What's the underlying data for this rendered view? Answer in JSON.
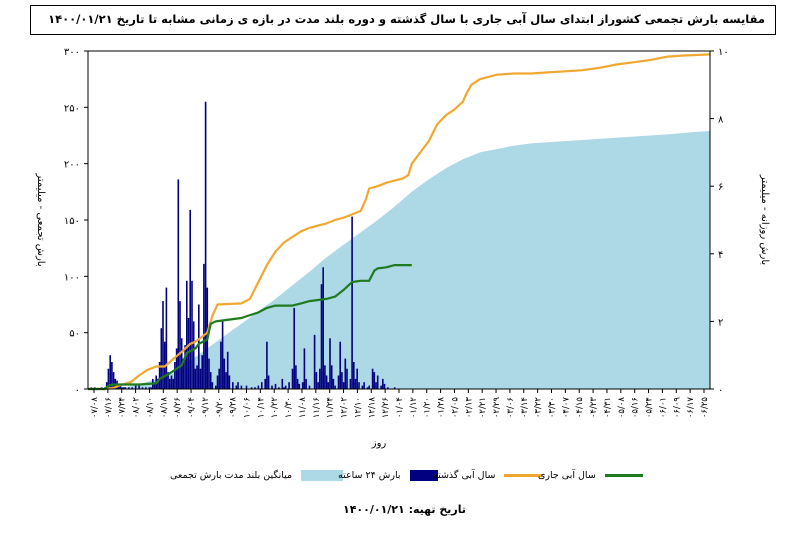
{
  "header": {
    "title": "مقایسه بارش تجمعی کشوراز ابتدای سال آبی جاری با سال گذشته و دوره بلند مدت در بازه ی زمانی مشابه تا تاریخ   ۱۴۰۰/۰۱/۲۱"
  },
  "footer": {
    "date_label": "تاریخ تهیه:",
    "date_value": "۱۴۰۰/۰۱/۲۱"
  },
  "colors": {
    "longterm": "#add8e6",
    "daily": "#000080",
    "last_year": "#f0a830",
    "current": "#1e7b1e"
  },
  "chart_data": {
    "type": "area",
    "x_unit": "day of water year",
    "xlabel": "روز",
    "ylabel_left": "بارش تجمعی - میلیمتر",
    "ylabel_right": "بارش روزانه - میلیمتر",
    "ylim_left": [
      0,
      300
    ],
    "ylim_right": [
      0,
      10
    ],
    "y_ticks_left": [
      "۰",
      "۵۰",
      "۱۰۰",
      "۱۵۰",
      "۲۰۰",
      "۲۵۰",
      "۳۰۰"
    ],
    "y_ticks_right": [
      "۰",
      "۲",
      "۴",
      "۶",
      "۸",
      "۱۰"
    ],
    "x_ticks": [
      "۰۷/۰۸",
      "۰۷/۱۶",
      "۰۷/۲۴",
      "۰۸/۰۲",
      "۰۸/۱۰",
      "۰۸/۱۸",
      "۰۸/۲۶",
      "۰۹/۰۴",
      "۰۹/۱۲",
      "۰۹/۲۰",
      "۰۹/۲۸",
      "۱۰/۰۶",
      "۱۰/۱۴",
      "۱۰/۲۲",
      "۱۰/۳۰",
      "۱۱/۰۸",
      "۱۱/۱۶",
      "۱۱/۲۴",
      "۱۲/۰۲",
      "۱۲/۱۰",
      "۱۲/۱۸",
      "۱۲/۲۶",
      "۰۱/۰۴",
      "۰۱/۱۲",
      "۰۱/۲۰",
      "۰۱/۲۸",
      "۰۲/۰۵",
      "۰۲/۱۳",
      "۰۲/۲۱",
      "۰۲/۲۹",
      "۰۳/۰۶",
      "۰۳/۱۴",
      "۰۳/۲۲",
      "۰۳/۳۰",
      "۰۴/۰۷",
      "۰۴/۱۵",
      "۰۴/۲۳",
      "۰۴/۳۱",
      "۰۵/۰۸",
      "۰۵/۱۶",
      "۰۵/۲۴",
      "۰۶/۰۱",
      "۰۶/۰۹",
      "۰۶/۱۷",
      "۰۶/۲۵"
    ],
    "x_max": 365,
    "series": [
      {
        "name": "میانگین بلند مدت بارش تجمعی",
        "kind": "area",
        "axis": "left",
        "points": [
          [
            0,
            0
          ],
          [
            20,
            1
          ],
          [
            30,
            4
          ],
          [
            40,
            9
          ],
          [
            50,
            16
          ],
          [
            60,
            25
          ],
          [
            70,
            36
          ],
          [
            80,
            47
          ],
          [
            90,
            58
          ],
          [
            100,
            69
          ],
          [
            110,
            80
          ],
          [
            120,
            92
          ],
          [
            130,
            104
          ],
          [
            140,
            117
          ],
          [
            150,
            128
          ],
          [
            160,
            139
          ],
          [
            170,
            150
          ],
          [
            180,
            162
          ],
          [
            190,
            175
          ],
          [
            200,
            186
          ],
          [
            210,
            196
          ],
          [
            220,
            204
          ],
          [
            230,
            210
          ],
          [
            240,
            213
          ],
          [
            250,
            216
          ],
          [
            260,
            218
          ],
          [
            280,
            220
          ],
          [
            300,
            222
          ],
          [
            320,
            224
          ],
          [
            340,
            226
          ],
          [
            355,
            228
          ],
          [
            365,
            229
          ]
        ]
      },
      {
        "name": "سال آبی گذشته",
        "kind": "line",
        "axis": "left",
        "points": [
          [
            0,
            0
          ],
          [
            10,
            0
          ],
          [
            15,
            1
          ],
          [
            20,
            4
          ],
          [
            25,
            6
          ],
          [
            30,
            12
          ],
          [
            35,
            17
          ],
          [
            40,
            20
          ],
          [
            45,
            20
          ],
          [
            48,
            24
          ],
          [
            55,
            33
          ],
          [
            60,
            40
          ],
          [
            63,
            42
          ],
          [
            70,
            50
          ],
          [
            73,
            65
          ],
          [
            76,
            75
          ],
          [
            90,
            76
          ],
          [
            95,
            80
          ],
          [
            97,
            86
          ],
          [
            100,
            95
          ],
          [
            105,
            110
          ],
          [
            110,
            122
          ],
          [
            115,
            130
          ],
          [
            120,
            135
          ],
          [
            125,
            140
          ],
          [
            130,
            143
          ],
          [
            135,
            145
          ],
          [
            140,
            147
          ],
          [
            145,
            150
          ],
          [
            150,
            152
          ],
          [
            155,
            155
          ],
          [
            160,
            158
          ],
          [
            163,
            168
          ],
          [
            165,
            178
          ],
          [
            170,
            180
          ],
          [
            175,
            183
          ],
          [
            180,
            185
          ],
          [
            185,
            187
          ],
          [
            188,
            190
          ],
          [
            190,
            200
          ],
          [
            195,
            210
          ],
          [
            200,
            220
          ],
          [
            205,
            235
          ],
          [
            210,
            243
          ],
          [
            215,
            248
          ],
          [
            220,
            255
          ],
          [
            222,
            262
          ],
          [
            225,
            270
          ],
          [
            230,
            275
          ],
          [
            235,
            277
          ],
          [
            240,
            279
          ],
          [
            250,
            280
          ],
          [
            260,
            280
          ],
          [
            270,
            281
          ],
          [
            280,
            282
          ],
          [
            290,
            283
          ],
          [
            300,
            285
          ],
          [
            310,
            288
          ],
          [
            320,
            290
          ],
          [
            330,
            292
          ],
          [
            340,
            295
          ],
          [
            350,
            296
          ],
          [
            365,
            297
          ]
        ]
      },
      {
        "name": "سال آبی جاری",
        "kind": "line",
        "axis": "left",
        "points": [
          [
            0,
            0
          ],
          [
            10,
            0
          ],
          [
            12,
            3
          ],
          [
            15,
            4
          ],
          [
            30,
            4
          ],
          [
            40,
            5
          ],
          [
            42,
            9
          ],
          [
            47,
            13
          ],
          [
            50,
            16
          ],
          [
            55,
            21
          ],
          [
            58,
            32
          ],
          [
            63,
            36
          ],
          [
            65,
            40
          ],
          [
            70,
            44
          ],
          [
            72,
            58
          ],
          [
            75,
            60
          ],
          [
            85,
            62
          ],
          [
            90,
            63
          ],
          [
            100,
            68
          ],
          [
            105,
            72
          ],
          [
            110,
            74
          ],
          [
            120,
            74
          ],
          [
            125,
            76
          ],
          [
            130,
            78
          ],
          [
            135,
            79
          ],
          [
            140,
            80
          ],
          [
            145,
            82
          ],
          [
            150,
            88
          ],
          [
            155,
            95
          ],
          [
            160,
            96
          ],
          [
            165,
            96
          ],
          [
            168,
            105
          ],
          [
            170,
            107
          ],
          [
            175,
            108
          ],
          [
            180,
            110
          ],
          [
            185,
            110
          ],
          [
            190,
            110
          ]
        ]
      },
      {
        "name": "بارش ۲۴ ساعته",
        "kind": "bar",
        "axis": "right",
        "points": [
          [
            2,
            0.05
          ],
          [
            4,
            0.05
          ],
          [
            8,
            0.05
          ],
          [
            10,
            0.05
          ],
          [
            11,
            0.2
          ],
          [
            12,
            0.6
          ],
          [
            13,
            1.0
          ],
          [
            14,
            0.8
          ],
          [
            15,
            0.5
          ],
          [
            16,
            0.3
          ],
          [
            17,
            0.25
          ],
          [
            18,
            0.1
          ],
          [
            19,
            0.1
          ],
          [
            20,
            0.05
          ],
          [
            21,
            0.05
          ],
          [
            22,
            0.05
          ],
          [
            24,
            0.05
          ],
          [
            26,
            0.05
          ],
          [
            28,
            0.1
          ],
          [
            30,
            0.1
          ],
          [
            32,
            0.05
          ],
          [
            34,
            0.05
          ],
          [
            36,
            0.05
          ],
          [
            37,
            0.05
          ],
          [
            38,
            0.3
          ],
          [
            39,
            0.2
          ],
          [
            40,
            0.4
          ],
          [
            41,
            0.3
          ],
          [
            42,
            0.8
          ],
          [
            43,
            1.8
          ],
          [
            44,
            2.6
          ],
          [
            45,
            1.4
          ],
          [
            46,
            3.0
          ],
          [
            47,
            0.5
          ],
          [
            48,
            0.3
          ],
          [
            49,
            0.4
          ],
          [
            50,
            0.3
          ],
          [
            51,
            0.8
          ],
          [
            52,
            1.2
          ],
          [
            53,
            6.2
          ],
          [
            54,
            2.6
          ],
          [
            55,
            1.5
          ],
          [
            56,
            0.9
          ],
          [
            57,
            1.3
          ],
          [
            58,
            3.2
          ],
          [
            59,
            2.1
          ],
          [
            60,
            5.3
          ],
          [
            61,
            3.2
          ],
          [
            62,
            2.0
          ],
          [
            63,
            0.6
          ],
          [
            64,
            0.7
          ],
          [
            65,
            2.5
          ],
          [
            66,
            0.6
          ],
          [
            67,
            1.0
          ],
          [
            68,
            3.7
          ],
          [
            69,
            8.5
          ],
          [
            70,
            3.0
          ],
          [
            71,
            0.9
          ],
          [
            72,
            0.5
          ],
          [
            73,
            0.2
          ],
          [
            75,
            0.1
          ],
          [
            76,
            0.4
          ],
          [
            77,
            0.6
          ],
          [
            78,
            1.4
          ],
          [
            79,
            2.0
          ],
          [
            80,
            0.9
          ],
          [
            81,
            0.5
          ],
          [
            82,
            1.1
          ],
          [
            83,
            0.4
          ],
          [
            85,
            0.2
          ],
          [
            87,
            0.1
          ],
          [
            88,
            0.2
          ],
          [
            90,
            0.1
          ],
          [
            93,
            0.1
          ],
          [
            96,
            0.05
          ],
          [
            98,
            0.05
          ],
          [
            100,
            0.1
          ],
          [
            102,
            0.2
          ],
          [
            104,
            0.3
          ],
          [
            105,
            1.4
          ],
          [
            106,
            0.4
          ],
          [
            108,
            0.1
          ],
          [
            110,
            0.15
          ],
          [
            112,
            0.05
          ],
          [
            114,
            0.3
          ],
          [
            115,
            0.05
          ],
          [
            116,
            0.1
          ],
          [
            118,
            0.2
          ],
          [
            120,
            0.6
          ],
          [
            121,
            2.4
          ],
          [
            122,
            0.7
          ],
          [
            123,
            0.3
          ],
          [
            124,
            0.15
          ],
          [
            126,
            0.2
          ],
          [
            127,
            1.2
          ],
          [
            128,
            0.3
          ],
          [
            130,
            0.1
          ],
          [
            133,
            1.6
          ],
          [
            134,
            0.5
          ],
          [
            135,
            0.2
          ],
          [
            136,
            0.6
          ],
          [
            137,
            3.1
          ],
          [
            138,
            3.6
          ],
          [
            139,
            0.7
          ],
          [
            140,
            0.4
          ],
          [
            141,
            0.2
          ],
          [
            142,
            1.5
          ],
          [
            143,
            0.7
          ],
          [
            144,
            0.3
          ],
          [
            145,
            0.1
          ],
          [
            147,
            0.4
          ],
          [
            148,
            1.4
          ],
          [
            149,
            0.5
          ],
          [
            150,
            0.2
          ],
          [
            151,
            0.9
          ],
          [
            152,
            0.6
          ],
          [
            154,
            0.3
          ],
          [
            155,
            5.1
          ],
          [
            156,
            0.8
          ],
          [
            157,
            0.3
          ],
          [
            158,
            0.6
          ],
          [
            159,
            0.2
          ],
          [
            161,
            0.1
          ],
          [
            162,
            0.2
          ],
          [
            164,
            0.05
          ],
          [
            165,
            0.1
          ],
          [
            167,
            0.6
          ],
          [
            168,
            0.5
          ],
          [
            169,
            0.2
          ],
          [
            170,
            0.4
          ],
          [
            172,
            0.1
          ],
          [
            173,
            0.3
          ],
          [
            174,
            0.15
          ],
          [
            176,
            0.05
          ],
          [
            180,
            0.05
          ]
        ]
      }
    ],
    "legend_position": "bottom"
  },
  "legend": {
    "items": [
      {
        "label": "میانگین بلند مدت بارش تجمعی",
        "color": "#add8e6",
        "kind": "box"
      },
      {
        "label": "بارش ۲۴ ساعته",
        "color": "#000080",
        "kind": "box"
      },
      {
        "label": "سال آبی گذشته",
        "color": "#f0a830",
        "kind": "line"
      },
      {
        "label": "سال آبی جاری",
        "color": "#1e7b1e",
        "kind": "line"
      }
    ]
  }
}
